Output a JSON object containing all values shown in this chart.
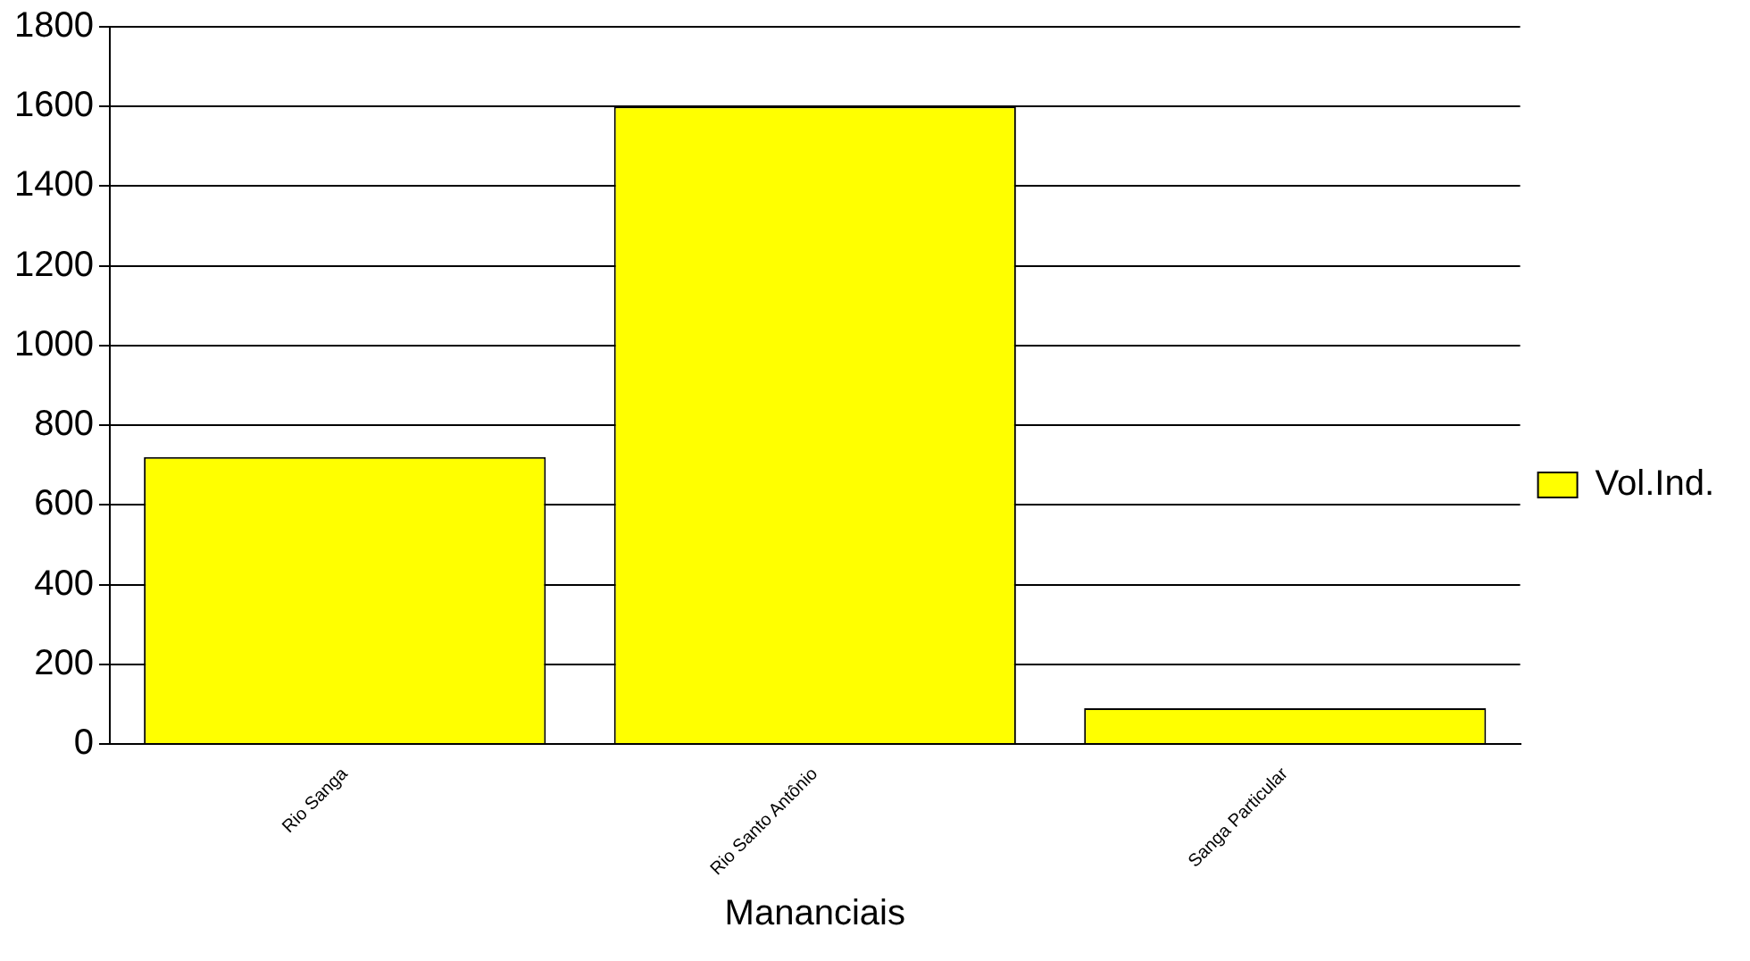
{
  "chart_data": {
    "type": "bar",
    "xlabel": "Mananciais",
    "categories": [
      "Rio Sanga",
      "Rio Santo Antônio",
      "Sanga Particular"
    ],
    "series": [
      {
        "name": "Vol.Ind.",
        "color": "#ffff00",
        "values": [
          720,
          1600,
          90
        ]
      }
    ],
    "ylim": [
      0,
      1800
    ],
    "yticks": [
      0,
      200,
      400,
      600,
      800,
      1000,
      1200,
      1400,
      1600,
      1800
    ],
    "grid": "y",
    "legend": "right"
  }
}
